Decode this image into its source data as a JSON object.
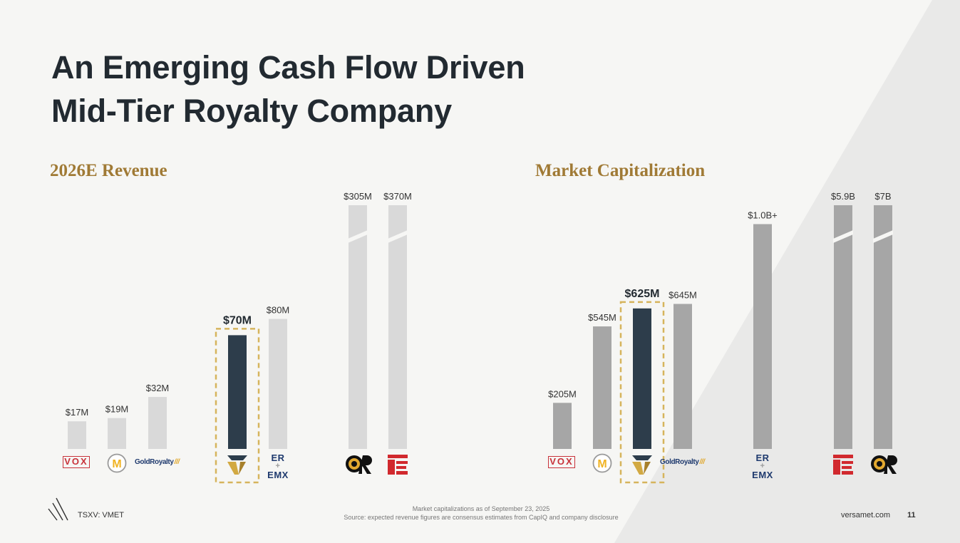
{
  "title": {
    "line1": "An Emerging Cash Flow Driven",
    "line2": "Mid-Tier Royalty Company"
  },
  "footer": {
    "ticker": "TSXV: VMET",
    "note1": "Market capitalizations as of September 23, 2025",
    "note2": "Source: expected revenue figures are consensus estimates from CapIQ and company disclosure",
    "website": "versamet.com",
    "page_number": "11"
  },
  "logos": {
    "vox": "VOX",
    "gold_royalty": "GoldRoyalty",
    "emx_top": "ER",
    "emx_plus": "+",
    "emx_bottom": "EMX"
  },
  "colors": {
    "highlight": "#2d3d4b",
    "revenue_bar": "#d9d9d9",
    "mcap_bar": "#a6a6a6",
    "dashed_box": "#d6b45c",
    "accent_title": "#a07a35"
  },
  "chart_data": [
    {
      "type": "bar",
      "title": "2026E Revenue",
      "unit": "USD millions",
      "categories": [
        "VOX Royalty",
        "Metalla",
        "Gold Royalty",
        "Versamet",
        "Elemental Altus + EMX",
        "Osisko Gold Royalties",
        "Triple Flag"
      ],
      "icons": [
        "vox-logo",
        "metalla-logo",
        "gold-royalty-logo",
        "versamet-logo",
        "elemental-emx-logo",
        "osisko-logo",
        "triple-flag-logo"
      ],
      "values": [
        17,
        19,
        32,
        70,
        80,
        305,
        370
      ],
      "labels": [
        "$17M",
        "$19M",
        "$32M",
        "$70M",
        "$80M",
        "$305M",
        "$370M"
      ],
      "highlight_index": 3,
      "broken_axis_indices": [
        5,
        6
      ]
    },
    {
      "type": "bar",
      "title": "Market Capitalization",
      "unit": "USD millions",
      "categories": [
        "VOX Royalty",
        "Metalla",
        "Versamet",
        "Gold Royalty",
        "Elemental Altus + EMX",
        "Triple Flag",
        "Osisko Gold Royalties"
      ],
      "icons": [
        "vox-logo",
        "metalla-logo",
        "versamet-logo",
        "gold-royalty-logo",
        "elemental-emx-logo",
        "triple-flag-logo",
        "osisko-logo"
      ],
      "values": [
        205,
        545,
        625,
        645,
        1000,
        5900,
        7000
      ],
      "labels": [
        "$205M",
        "$545M",
        "$625M",
        "$645M",
        "$1.0B+",
        "$5.9B",
        "$7B"
      ],
      "highlight_index": 2,
      "broken_axis_indices": [
        5,
        6
      ]
    }
  ]
}
